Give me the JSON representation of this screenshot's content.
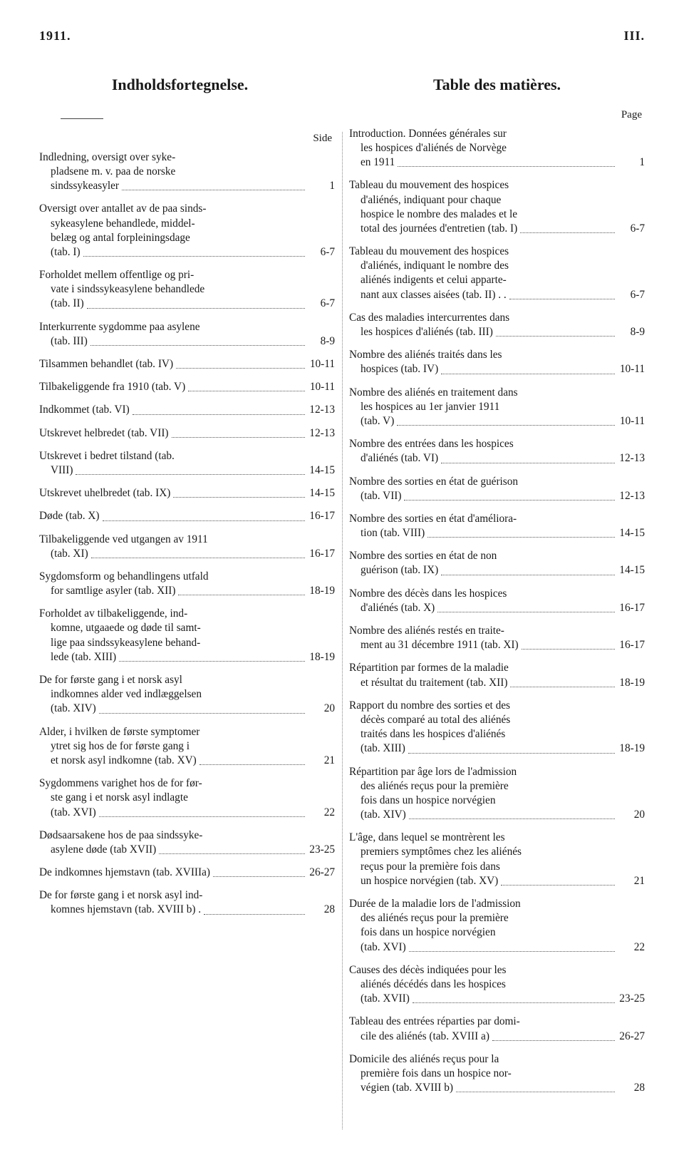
{
  "header": {
    "year": "1911.",
    "roman": "III."
  },
  "titles": {
    "left": "Indholdsfortegnelse.",
    "right": "Table des matières."
  },
  "labels": {
    "side": "Side",
    "page": "Page"
  },
  "left_entries": [
    {
      "lines": [
        "Indledning, oversigt over syke-",
        "pladsene m. v. paa de norske",
        "sindssykeasyler"
      ],
      "pg": "1"
    },
    {
      "lines": [
        "Oversigt over antallet av de paa sinds-",
        "sykeasylene behandlede, middel-",
        "belæg og antal forpleiningsdage",
        "(tab. I)"
      ],
      "pg": "6-7"
    },
    {
      "lines": [
        "Forholdet mellem offentlige og pri-",
        "vate i sindssykeasylene behandlede",
        "(tab. II)"
      ],
      "pg": "6-7"
    },
    {
      "lines": [
        "Interkurrente sygdomme paa asylene",
        "(tab. III)"
      ],
      "pg": "8-9"
    },
    {
      "lines": [
        "Tilsammen behandlet (tab. IV)"
      ],
      "pg": "10-11"
    },
    {
      "lines": [
        "Tilbakeliggende fra 1910 (tab. V)"
      ],
      "pg": "10-11"
    },
    {
      "lines": [
        "Indkommet (tab. VI)"
      ],
      "pg": "12-13"
    },
    {
      "lines": [
        "Utskrevet helbredet (tab. VII)"
      ],
      "pg": "12-13"
    },
    {
      "lines": [
        "Utskrevet i bedret tilstand (tab.",
        "VIII)"
      ],
      "pg": "14-15"
    },
    {
      "lines": [
        "Utskrevet uhelbredet (tab. IX)"
      ],
      "pg": "14-15"
    },
    {
      "lines": [
        "Døde (tab. X)"
      ],
      "pg": "16-17"
    },
    {
      "lines": [
        "Tilbakeliggende ved utgangen av 1911",
        "(tab. XI)"
      ],
      "pg": "16-17"
    },
    {
      "lines": [
        "Sygdomsform og behandlingens utfald",
        "for samtlige asyler (tab. XII)"
      ],
      "pg": "18-19"
    },
    {
      "lines": [
        "Forholdet av tilbakeliggende, ind-",
        "komne, utgaaede og døde til samt-",
        "lige paa sindssykeasylene behand-",
        "lede (tab. XIII)"
      ],
      "pg": "18-19"
    },
    {
      "lines": [
        "De for første gang i et norsk asyl",
        "indkomnes alder ved indlæggelsen",
        "(tab. XIV)"
      ],
      "pg": "20"
    },
    {
      "lines": [
        "Alder, i hvilken de første symptomer",
        "ytret sig hos de for første gang i",
        "et norsk asyl indkomne (tab. XV)"
      ],
      "pg": "21"
    },
    {
      "lines": [
        "Sygdommens varighet hos de for før-",
        "ste gang i et norsk asyl indlagte",
        "(tab. XVI)"
      ],
      "pg": "22"
    },
    {
      "lines": [
        "Dødsaarsakene hos de paa sindssyke-",
        "asylene døde (tab XVII)"
      ],
      "pg": "23-25"
    },
    {
      "lines": [
        "De indkomnes hjemstavn (tab. XVIIIa)"
      ],
      "pg": "26-27"
    },
    {
      "lines": [
        "De for første gang i et norsk asyl ind-",
        "komnes hjemstavn (tab. XVIII b) ."
      ],
      "pg": "28"
    }
  ],
  "right_entries": [
    {
      "lines": [
        "Introduction. Données générales sur",
        "les hospices d'aliénés de Norvège",
        "en 1911"
      ],
      "pg": "1"
    },
    {
      "lines": [
        "Tableau du mouvement des hospices",
        "d'aliénés, indiquant pour chaque",
        "hospice le nombre des malades et le",
        "total des journées d'entretien (tab. I)"
      ],
      "pg": "6-7"
    },
    {
      "lines": [
        "Tableau du mouvement des hospices",
        "d'aliénés, indiquant le nombre des",
        "aliénés indigents et celui apparte-",
        "nant aux classes aisées (tab. II) . ."
      ],
      "pg": "6-7"
    },
    {
      "lines": [
        "Cas des maladies intercurrentes dans",
        "les hospices d'aliénés (tab. III)"
      ],
      "pg": "8-9"
    },
    {
      "lines": [
        "Nombre des aliénés traités dans les",
        "hospices (tab. IV)"
      ],
      "pg": "10-11"
    },
    {
      "lines": [
        "Nombre des aliénés en traitement dans",
        "les hospices au 1er janvier 1911",
        "(tab. V)"
      ],
      "pg": "10-11"
    },
    {
      "lines": [
        "Nombre des entrées dans les hospices",
        "d'aliénés (tab. VI)"
      ],
      "pg": "12-13"
    },
    {
      "lines": [
        "Nombre des sorties en état de guérison",
        "(tab. VII)"
      ],
      "pg": "12-13"
    },
    {
      "lines": [
        "Nombre des sorties en état d'améliora-",
        "tion (tab. VIII)"
      ],
      "pg": "14-15"
    },
    {
      "lines": [
        "Nombre des sorties en état de non",
        "guérison (tab. IX)"
      ],
      "pg": "14-15"
    },
    {
      "lines": [
        "Nombre des décès dans les hospices",
        "d'aliénés (tab. X)"
      ],
      "pg": "16-17"
    },
    {
      "lines": [
        "Nombre des aliénés restés en traite-",
        "ment au 31 décembre 1911 (tab. XI)"
      ],
      "pg": "16-17"
    },
    {
      "lines": [
        "Répartition par formes de la maladie",
        "et résultat du traitement (tab. XII)"
      ],
      "pg": "18-19"
    },
    {
      "lines": [
        "Rapport du nombre des sorties et des",
        "décès comparé au total des aliénés",
        "traités dans les hospices d'aliénés",
        "(tab. XIII)"
      ],
      "pg": "18-19"
    },
    {
      "lines": [
        "Répartition par âge lors de l'admission",
        "des aliénés reçus pour la première",
        "fois dans un hospice norvégien",
        "(tab. XIV)"
      ],
      "pg": "20"
    },
    {
      "lines": [
        "L'âge, dans lequel se montrèrent les",
        "premiers symptômes chez les aliénés",
        "reçus pour la première fois dans",
        "un hospice norvégien (tab. XV)"
      ],
      "pg": "21"
    },
    {
      "lines": [
        "Durée de la maladie lors de l'admission",
        "des aliénés reçus pour la première",
        "fois dans un hospice norvégien",
        "(tab. XVI)"
      ],
      "pg": "22"
    },
    {
      "lines": [
        "Causes des décès indiquées pour les",
        "aliénés décédés dans les hospices",
        "(tab. XVII)"
      ],
      "pg": "23-25"
    },
    {
      "lines": [
        "Tableau des entrées réparties par domi-",
        "cile des aliénés (tab. XVIII a)"
      ],
      "pg": "26-27"
    },
    {
      "lines": [
        "Domicile des aliénés reçus pour la",
        "première fois dans un hospice nor-",
        "végien (tab. XVIII b)"
      ],
      "pg": "28"
    }
  ]
}
